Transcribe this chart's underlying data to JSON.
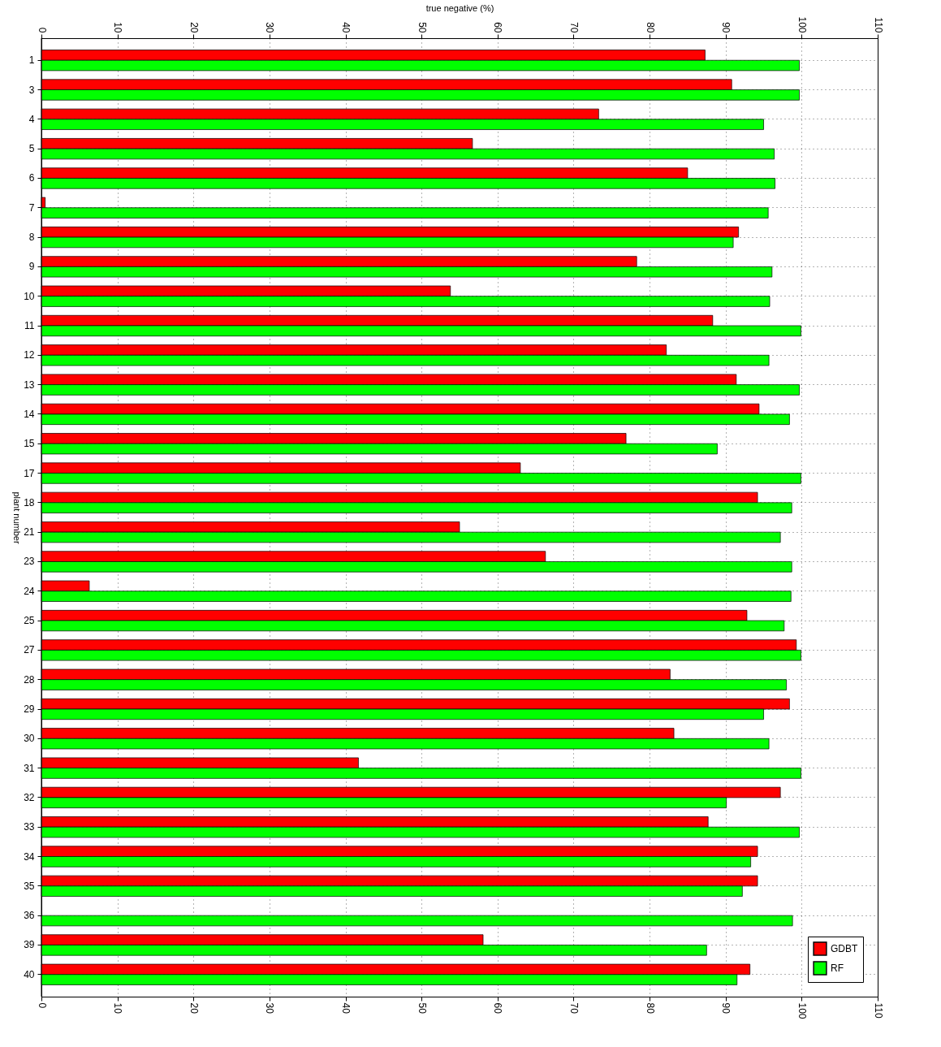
{
  "chart_data": {
    "type": "bar",
    "orientation": "horizontal",
    "xlabel": "true negative (%)",
    "ylabel": "plant number",
    "categories": [
      "1",
      "3",
      "4",
      "5",
      "6",
      "7",
      "8",
      "9",
      "10",
      "11",
      "12",
      "13",
      "14",
      "15",
      "17",
      "18",
      "21",
      "23",
      "24",
      "25",
      "27",
      "28",
      "29",
      "30",
      "31",
      "32",
      "33",
      "34",
      "35",
      "36",
      "39",
      "40"
    ],
    "series": [
      {
        "name": "GDBT",
        "color": "#ff0000",
        "values": [
          87.3,
          90.8,
          73.3,
          56.7,
          85.0,
          0.5,
          91.7,
          78.3,
          53.8,
          88.3,
          82.2,
          91.4,
          94.4,
          76.9,
          63.0,
          94.2,
          55.0,
          66.3,
          6.3,
          92.8,
          99.3,
          82.7,
          98.4,
          83.2,
          41.7,
          97.2,
          87.7,
          94.2,
          94.2,
          null,
          58.1,
          93.2
        ]
      },
      {
        "name": "RF",
        "color": "#00ff00",
        "values": [
          99.7,
          99.7,
          95.0,
          96.4,
          96.5,
          95.6,
          91.0,
          96.1,
          95.8,
          99.9,
          95.7,
          99.7,
          98.4,
          88.9,
          99.9,
          98.7,
          97.2,
          98.7,
          98.6,
          97.7,
          99.9,
          98.0,
          95.0,
          95.7,
          99.9,
          90.1,
          99.7,
          93.3,
          92.2,
          98.8,
          87.5,
          91.5
        ]
      }
    ],
    "xlim": [
      0,
      110
    ],
    "xticks": [
      0,
      10,
      20,
      30,
      40,
      50,
      60,
      70,
      80,
      90,
      100,
      110
    ],
    "x2lim": [
      0,
      110
    ],
    "x2ticks": [
      0,
      10,
      20,
      30,
      40,
      50,
      60,
      70,
      80,
      90,
      100,
      110
    ],
    "grid": true,
    "legend": "bottom right"
  }
}
